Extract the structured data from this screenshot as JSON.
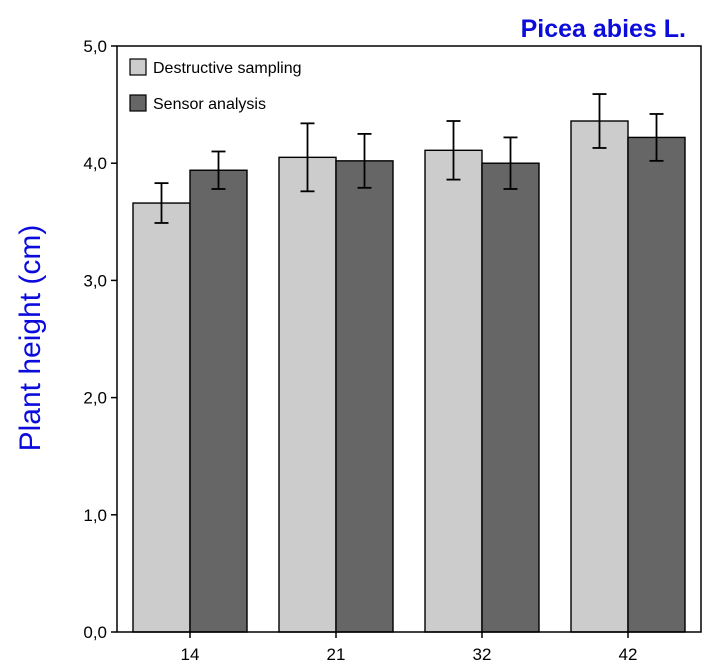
{
  "chart_data": {
    "type": "bar",
    "title": "Picea abies L.",
    "xlabel": "",
    "ylabel": "Plant height (cm)",
    "ylim": [
      0,
      5
    ],
    "yticks": [
      "0,0",
      "1,0",
      "2,0",
      "3,0",
      "4,0",
      "5,0"
    ],
    "categories": [
      "14",
      "21",
      "32",
      "42"
    ],
    "series": [
      {
        "name": "Destructive sampling",
        "values": [
          3.66,
          4.05,
          4.11,
          4.36
        ],
        "errors": [
          0.17,
          0.29,
          0.25,
          0.23
        ]
      },
      {
        "name": "Sensor analysis",
        "values": [
          3.94,
          4.02,
          4.0,
          4.22
        ],
        "errors": [
          0.16,
          0.23,
          0.22,
          0.2
        ]
      }
    ],
    "grid": false,
    "legend_position": "top-left"
  },
  "colors": {
    "title": "#0b0bdc",
    "ylabel": "#0b0bdc",
    "series": [
      "#cccccc",
      "#666666"
    ],
    "axis": "#000000"
  }
}
